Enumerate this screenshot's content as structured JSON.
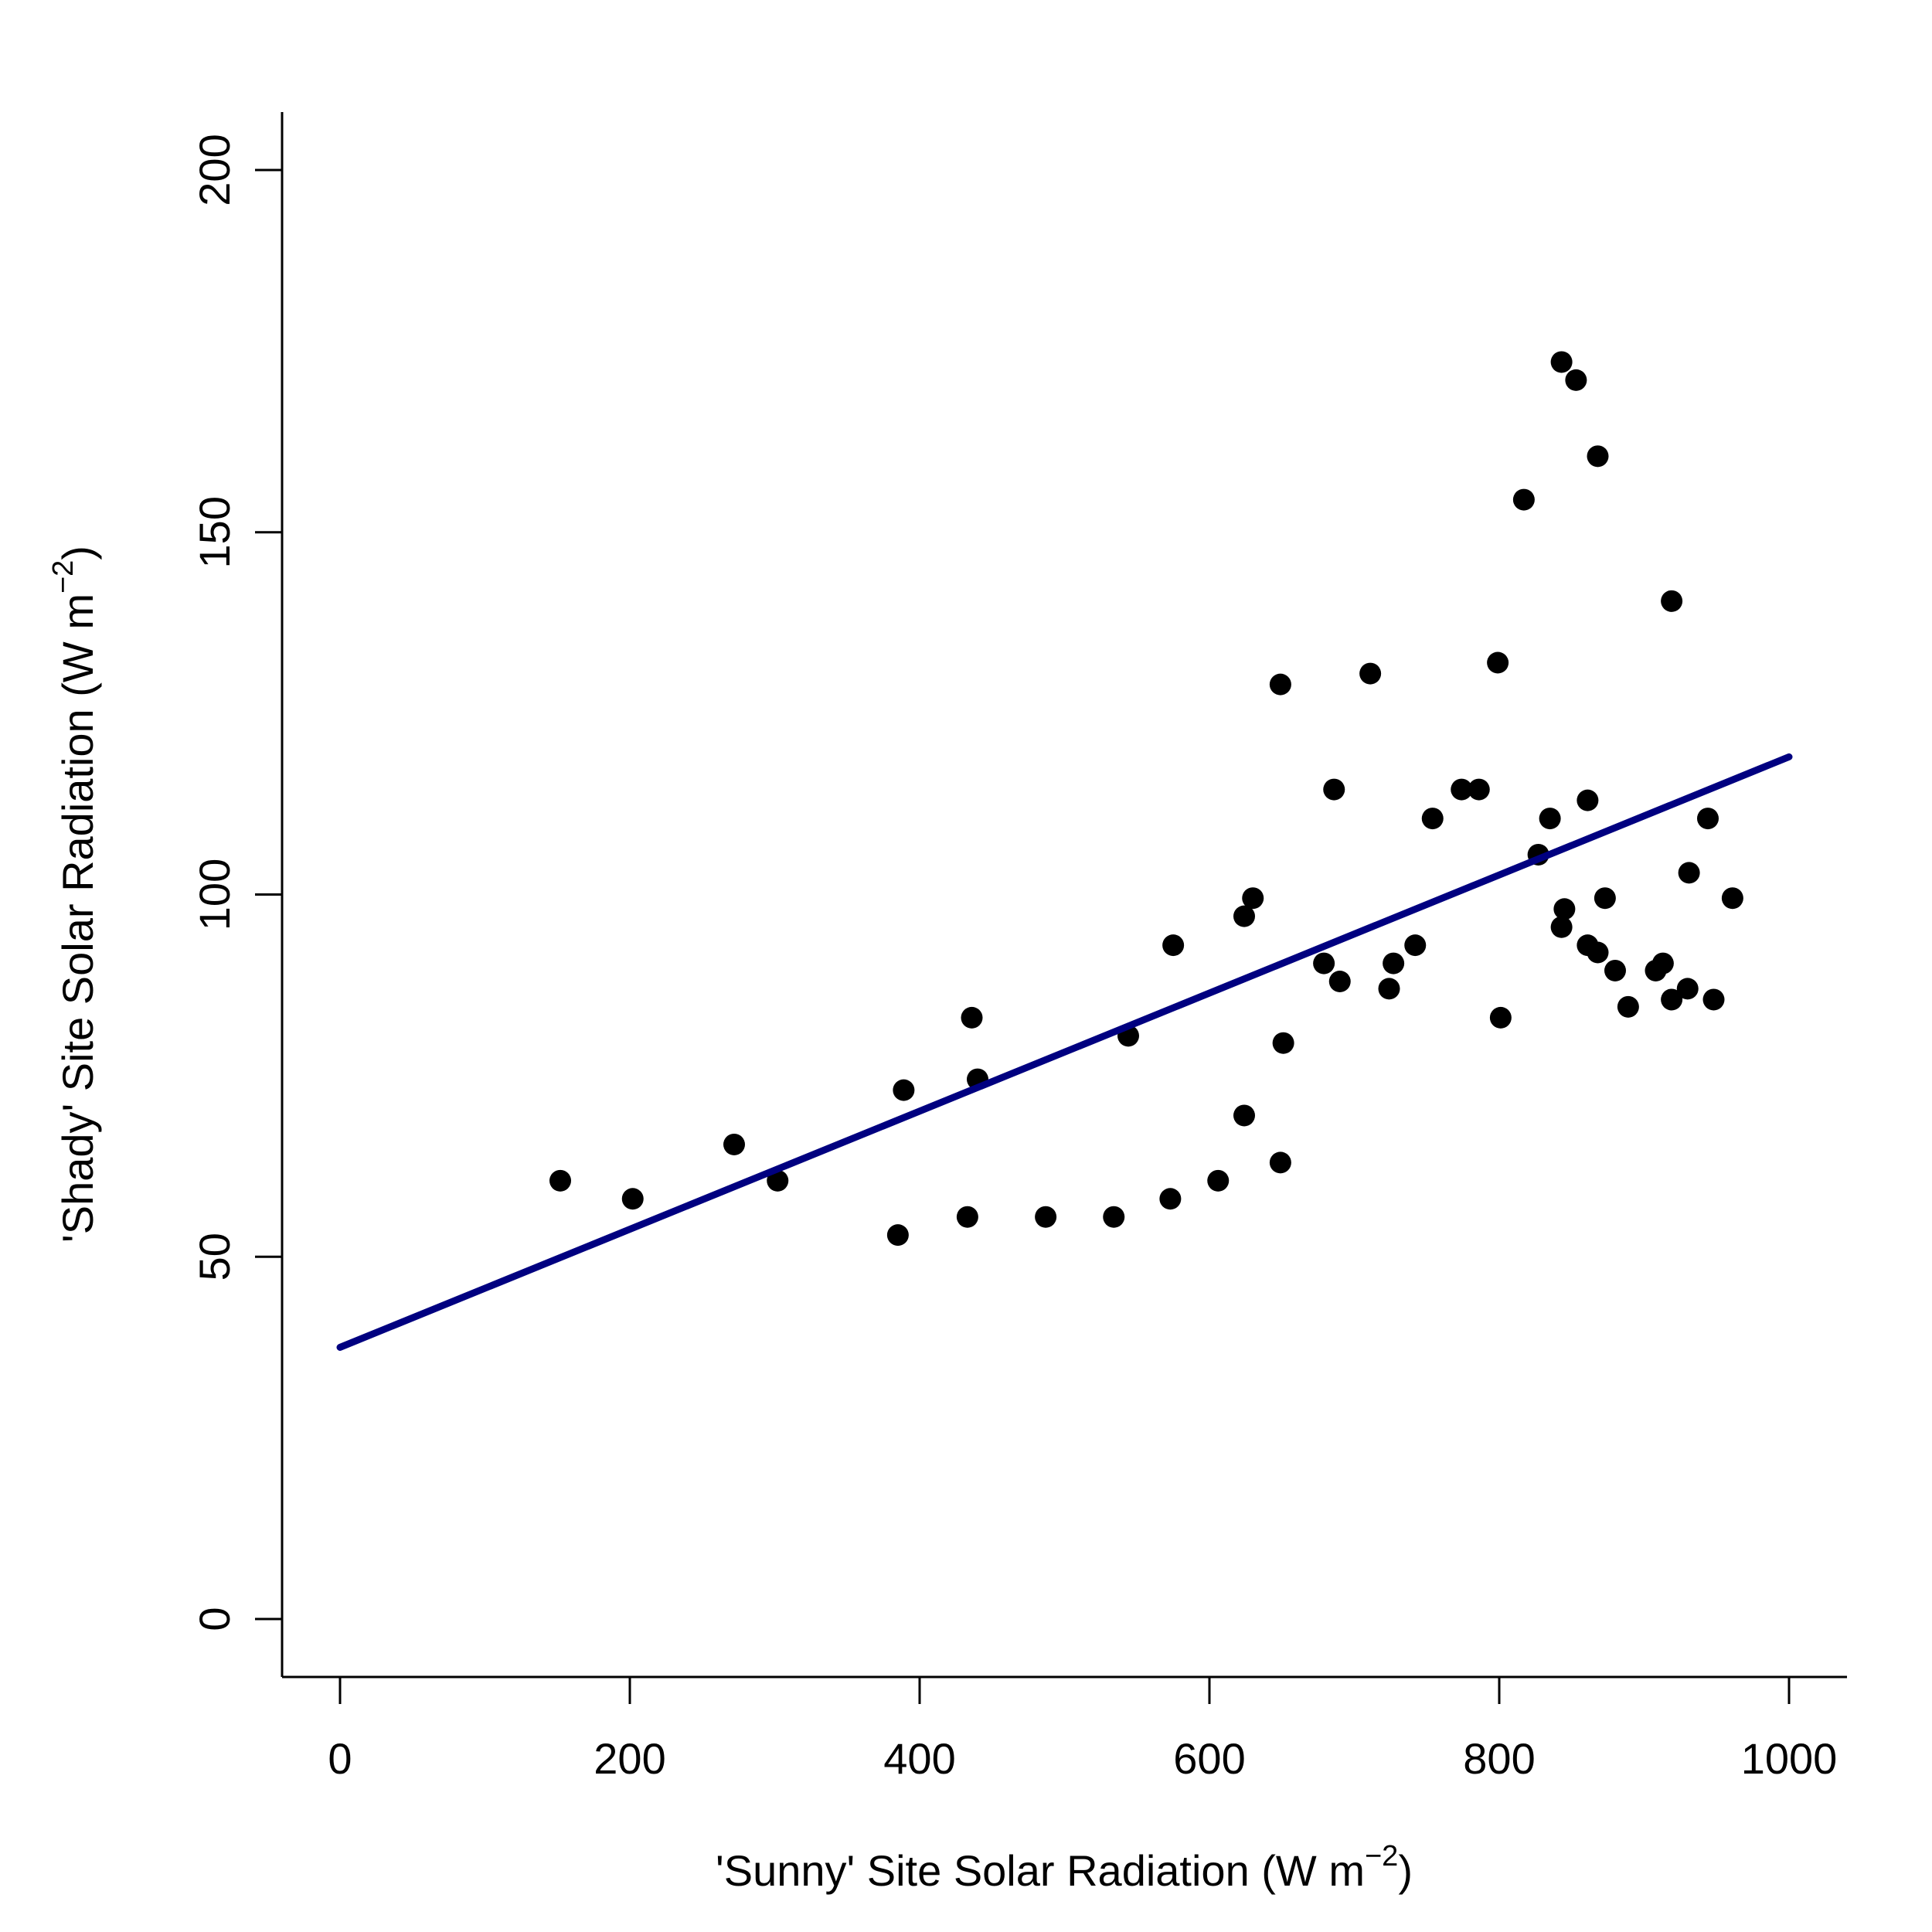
{
  "chart_data": {
    "type": "scatter",
    "title": "",
    "xlabel_prefix": "'Sunny' Site Solar Radiation (W m",
    "ylabel_prefix": "'Shady' Site Solar Radiation (W m",
    "unit_exponent": "−2",
    "label_suffix": ")",
    "xlim": [
      -40,
      1040
    ],
    "ylim": [
      -8,
      208
    ],
    "xticks": [
      0,
      200,
      400,
      600,
      800,
      1000
    ],
    "yticks": [
      0,
      50,
      100,
      150,
      200
    ],
    "grid": false,
    "legend": "none",
    "point_color": "#000000",
    "line_color": "#000080",
    "points": [
      {
        "x": 152,
        "y": 60.5
      },
      {
        "x": 202,
        "y": 58
      },
      {
        "x": 272,
        "y": 65.5
      },
      {
        "x": 302,
        "y": 60.5
      },
      {
        "x": 385,
        "y": 53
      },
      {
        "x": 389,
        "y": 73
      },
      {
        "x": 433,
        "y": 55.5
      },
      {
        "x": 436,
        "y": 83
      },
      {
        "x": 440,
        "y": 74.5
      },
      {
        "x": 487,
        "y": 55.5
      },
      {
        "x": 534,
        "y": 55.5
      },
      {
        "x": 544,
        "y": 80.5
      },
      {
        "x": 573,
        "y": 58
      },
      {
        "x": 575,
        "y": 93
      },
      {
        "x": 606,
        "y": 60.5
      },
      {
        "x": 624,
        "y": 69.5
      },
      {
        "x": 624,
        "y": 97
      },
      {
        "x": 630,
        "y": 99.5
      },
      {
        "x": 649,
        "y": 63
      },
      {
        "x": 649,
        "y": 129
      },
      {
        "x": 651,
        "y": 79.5
      },
      {
        "x": 679,
        "y": 90.5
      },
      {
        "x": 686,
        "y": 114.5
      },
      {
        "x": 690,
        "y": 88
      },
      {
        "x": 711,
        "y": 130.5
      },
      {
        "x": 724,
        "y": 87
      },
      {
        "x": 727,
        "y": 90.5
      },
      {
        "x": 742,
        "y": 93
      },
      {
        "x": 754,
        "y": 110.5
      },
      {
        "x": 774,
        "y": 114.5
      },
      {
        "x": 786,
        "y": 114.5
      },
      {
        "x": 799,
        "y": 132
      },
      {
        "x": 801,
        "y": 83
      },
      {
        "x": 817,
        "y": 154.5
      },
      {
        "x": 827,
        "y": 105.5
      },
      {
        "x": 835,
        "y": 110.5
      },
      {
        "x": 843,
        "y": 173.5
      },
      {
        "x": 843,
        "y": 95.5
      },
      {
        "x": 845,
        "y": 98
      },
      {
        "x": 853,
        "y": 171
      },
      {
        "x": 861,
        "y": 113
      },
      {
        "x": 861,
        "y": 93
      },
      {
        "x": 868,
        "y": 160.5
      },
      {
        "x": 868,
        "y": 92
      },
      {
        "x": 873,
        "y": 99.5
      },
      {
        "x": 880,
        "y": 89.5
      },
      {
        "x": 889,
        "y": 84.5
      },
      {
        "x": 908,
        "y": 89.5
      },
      {
        "x": 913,
        "y": 90.5
      },
      {
        "x": 919,
        "y": 140.5
      },
      {
        "x": 919,
        "y": 85.5
      },
      {
        "x": 930,
        "y": 87
      },
      {
        "x": 931,
        "y": 103
      },
      {
        "x": 944,
        "y": 110.5
      },
      {
        "x": 948,
        "y": 85.5
      },
      {
        "x": 961,
        "y": 99.5
      }
    ],
    "fit_line": {
      "x": [
        0,
        1000
      ],
      "y": [
        37.5,
        119
      ]
    }
  }
}
